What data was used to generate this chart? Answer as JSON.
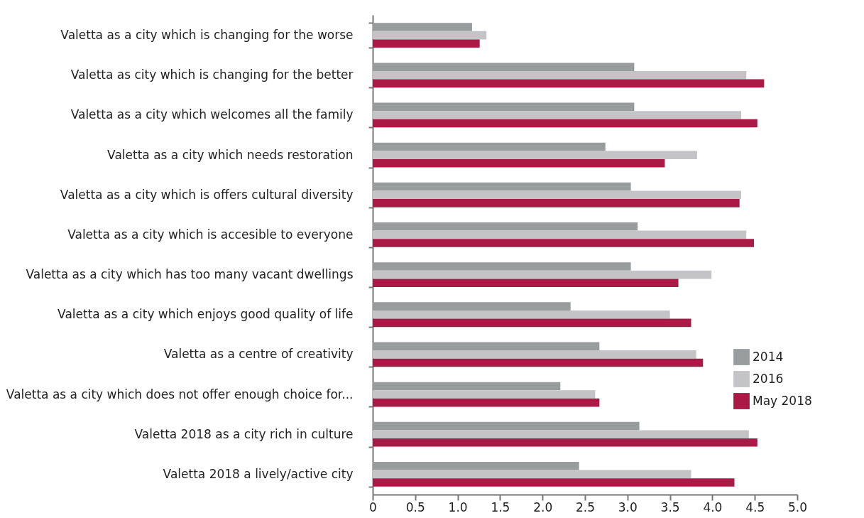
{
  "chart_data": {
    "type": "bar",
    "orientation": "horizontal",
    "categories": [
      "Valetta as a city which is changing for the worse",
      "Valetta as city which is changing for the better",
      "Valetta as a city which welcomes all the family",
      "Valetta as a city which needs restoration",
      "Valetta as a city which is offers cultural diversity",
      "Valetta as a city which is accesible to everyone",
      "Valetta as a city which has too many vacant dwellings",
      "Valetta as a city which enjoys good quality of life",
      "Valetta as a centre of creativity",
      "Valetta as a city which does not offer enough choice for...",
      "Valetta 2018 as a city rich in culture",
      "Valetta 2018 a lively/active city"
    ],
    "series": [
      {
        "name": "2014",
        "color": "#999c9d",
        "values": [
          1.17,
          3.08,
          3.08,
          2.74,
          3.04,
          3.12,
          3.04,
          2.33,
          2.67,
          2.21,
          3.14,
          2.43
        ]
      },
      {
        "name": "2016",
        "color": "#c4c4c6",
        "values": [
          1.34,
          4.4,
          4.34,
          3.82,
          4.34,
          4.4,
          3.99,
          3.5,
          3.81,
          2.62,
          4.43,
          3.75
        ]
      },
      {
        "name": "May 2018",
        "color": "#ab1947",
        "values": [
          1.26,
          4.61,
          4.53,
          3.44,
          4.32,
          4.49,
          3.6,
          3.75,
          3.89,
          2.67,
          4.53,
          4.26
        ]
      }
    ],
    "xlim": [
      0,
      5
    ],
    "xticks": [
      0,
      0.5,
      {
        "value": 1,
        "label": "1.0"
      },
      1.5,
      {
        "value": 2,
        "label": "2.0"
      },
      2.5,
      {
        "value": 3,
        "label": "3.0"
      },
      3.5,
      {
        "value": 4,
        "label": "4.0"
      },
      4.5,
      {
        "value": 5,
        "label": "5.0"
      }
    ],
    "grid": false,
    "legend": "right"
  }
}
